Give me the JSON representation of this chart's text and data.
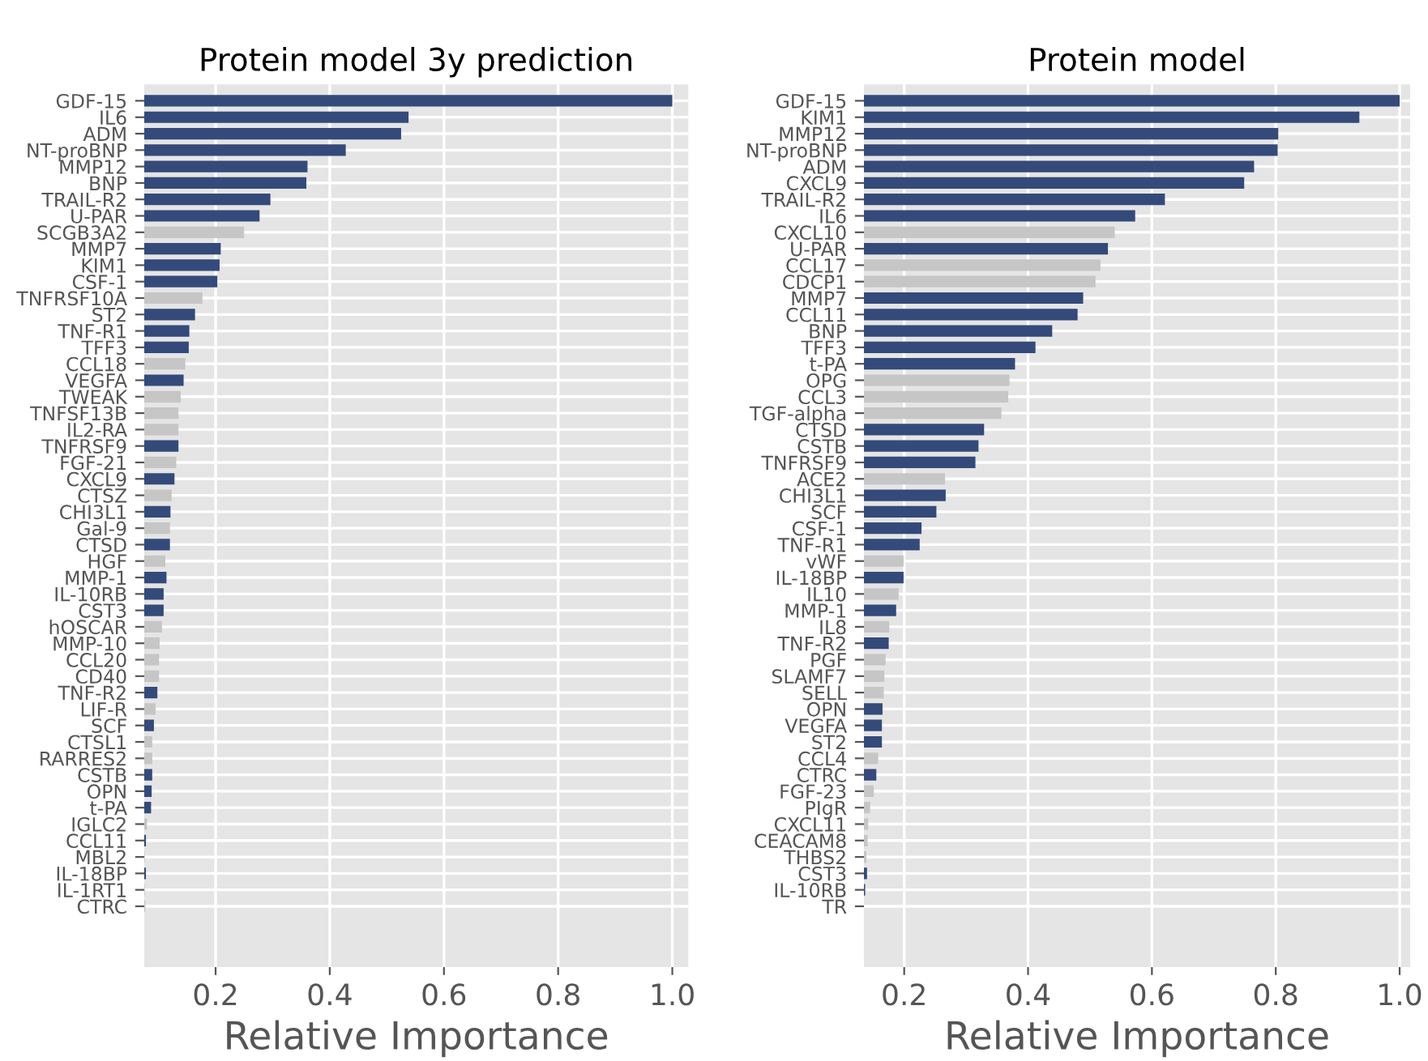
{
  "chart_data": [
    {
      "type": "bar",
      "orientation": "horizontal",
      "title": "Protein model 3y prediction",
      "xlabel": "Relative Importance",
      "grid": true,
      "categories": [
        "GDF-15",
        "IL6",
        "ADM",
        "NT-proBNP",
        "MMP12",
        "BNP",
        "TRAIL-R2",
        "U-PAR",
        "SCGB3A2",
        "MMP7",
        "KIM1",
        "CSF-1",
        "TNFRSF10A",
        "ST2",
        "TNF-R1",
        "TFF3",
        "CCL18",
        "VEGFA",
        "TWEAK",
        "TNFSF13B",
        "IL2-RA",
        "TNFRSF9",
        "FGF-21",
        "CXCL9",
        "CTSZ",
        "CHI3L1",
        "Gal-9",
        "CTSD",
        "HGF",
        "MMP-1",
        "IL-10RB",
        "CST3",
        "hOSCAR",
        "MMP-10",
        "CCL20",
        "CD40",
        "TNF-R2",
        "LIF-R",
        "SCF",
        "CTSL1",
        "RARRES2",
        "CSTB",
        "OPN",
        "t-PA",
        "IGLC2",
        "CCL11",
        "MBL2",
        "IL-18BP",
        "IL-1RT1",
        "CTRC"
      ],
      "values": [
        1.0,
        0.538,
        0.525,
        0.428,
        0.361,
        0.359,
        0.296,
        0.277,
        0.25,
        0.209,
        0.207,
        0.203,
        0.177,
        0.164,
        0.154,
        0.153,
        0.147,
        0.144,
        0.139,
        0.135,
        0.135,
        0.135,
        0.131,
        0.128,
        0.123,
        0.121,
        0.12,
        0.12,
        0.112,
        0.114,
        0.109,
        0.109,
        0.106,
        0.102,
        0.101,
        0.101,
        0.098,
        0.095,
        0.092,
        0.089,
        0.089,
        0.089,
        0.088,
        0.087,
        0.08,
        0.078,
        0.076,
        0.078,
        0.076,
        0.077
      ],
      "colors": [
        "#344a7a",
        "#344a7a",
        "#344a7a",
        "#344a7a",
        "#344a7a",
        "#344a7a",
        "#344a7a",
        "#344a7a",
        "#c6c6c6",
        "#344a7a",
        "#344a7a",
        "#344a7a",
        "#c6c6c6",
        "#344a7a",
        "#344a7a",
        "#344a7a",
        "#c6c6c6",
        "#344a7a",
        "#c6c6c6",
        "#c6c6c6",
        "#c6c6c6",
        "#344a7a",
        "#c6c6c6",
        "#344a7a",
        "#c6c6c6",
        "#344a7a",
        "#c6c6c6",
        "#344a7a",
        "#c6c6c6",
        "#344a7a",
        "#344a7a",
        "#344a7a",
        "#c6c6c6",
        "#c6c6c6",
        "#c6c6c6",
        "#c6c6c6",
        "#344a7a",
        "#c6c6c6",
        "#344a7a",
        "#c6c6c6",
        "#c6c6c6",
        "#344a7a",
        "#344a7a",
        "#344a7a",
        "#c6c6c6",
        "#344a7a",
        "#c6c6c6",
        "#344a7a",
        "#c6c6c6",
        "#c6c6c6"
      ],
      "xlim": [
        0.075,
        1.028
      ],
      "xticks": [
        {
          "value": 0.2,
          "label": "0.2"
        },
        {
          "value": 0.4,
          "label": "0.4"
        },
        {
          "value": 0.6,
          "label": "0.6"
        },
        {
          "value": 0.8,
          "label": "0.8"
        },
        {
          "value": 1.0,
          "label": "1.0"
        }
      ]
    },
    {
      "type": "bar",
      "orientation": "horizontal",
      "title": "Protein model",
      "xlabel": "Relative Importance",
      "grid": true,
      "categories": [
        "GDF-15",
        "KIM1",
        "MMP12",
        "NT-proBNP",
        "ADM",
        "CXCL9",
        "TRAIL-R2",
        "IL6",
        "CXCL10",
        "U-PAR",
        "CCL17",
        "CDCP1",
        "MMP7",
        "CCL11",
        "BNP",
        "TFF3",
        "t-PA",
        "OPG",
        "CCL3",
        "TGF-alpha",
        "CTSD",
        "CSTB",
        "TNFRSF9",
        "ACE2",
        "CHI3L1",
        "SCF",
        "CSF-1",
        "TNF-R1",
        "vWF",
        "IL-18BP",
        "IL10",
        "MMP-1",
        "IL8",
        "TNF-R2",
        "PGF",
        "SLAMF7",
        "SELL",
        "OPN",
        "VEGFA",
        "ST2",
        "CCL4",
        "CTRC",
        "FGF-23",
        "PIgR",
        "CXCL11",
        "CEACAM8",
        "THBS2",
        "CST3",
        "IL-10RB",
        "TR"
      ],
      "values": [
        1.0,
        0.935,
        0.804,
        0.803,
        0.765,
        0.749,
        0.621,
        0.573,
        0.54,
        0.529,
        0.517,
        0.509,
        0.489,
        0.48,
        0.439,
        0.412,
        0.379,
        0.37,
        0.368,
        0.357,
        0.329,
        0.32,
        0.315,
        0.266,
        0.267,
        0.252,
        0.228,
        0.225,
        0.199,
        0.199,
        0.191,
        0.187,
        0.176,
        0.175,
        0.17,
        0.168,
        0.167,
        0.165,
        0.164,
        0.164,
        0.158,
        0.155,
        0.151,
        0.145,
        0.142,
        0.141,
        0.139,
        0.14,
        0.137,
        null
      ],
      "colors": [
        "#344a7a",
        "#344a7a",
        "#344a7a",
        "#344a7a",
        "#344a7a",
        "#344a7a",
        "#344a7a",
        "#344a7a",
        "#c6c6c6",
        "#344a7a",
        "#c6c6c6",
        "#c6c6c6",
        "#344a7a",
        "#344a7a",
        "#344a7a",
        "#344a7a",
        "#344a7a",
        "#c6c6c6",
        "#c6c6c6",
        "#c6c6c6",
        "#344a7a",
        "#344a7a",
        "#344a7a",
        "#c6c6c6",
        "#344a7a",
        "#344a7a",
        "#344a7a",
        "#344a7a",
        "#c6c6c6",
        "#344a7a",
        "#c6c6c6",
        "#344a7a",
        "#c6c6c6",
        "#344a7a",
        "#c6c6c6",
        "#c6c6c6",
        "#c6c6c6",
        "#344a7a",
        "#344a7a",
        "#344a7a",
        "#c6c6c6",
        "#344a7a",
        "#c6c6c6",
        "#c6c6c6",
        "#c6c6c6",
        "#c6c6c6",
        "#c6c6c6",
        "#344a7a",
        "#344a7a",
        "#c6c6c6"
      ],
      "xlim": [
        0.135,
        1.017
      ],
      "xticks": [
        {
          "value": 0.2,
          "label": "0.2"
        },
        {
          "value": 0.4,
          "label": "0.4"
        },
        {
          "value": 0.6,
          "label": "0.6"
        },
        {
          "value": 0.8,
          "label": "0.8"
        },
        {
          "value": 1.0,
          "label": "1.0"
        }
      ]
    }
  ]
}
